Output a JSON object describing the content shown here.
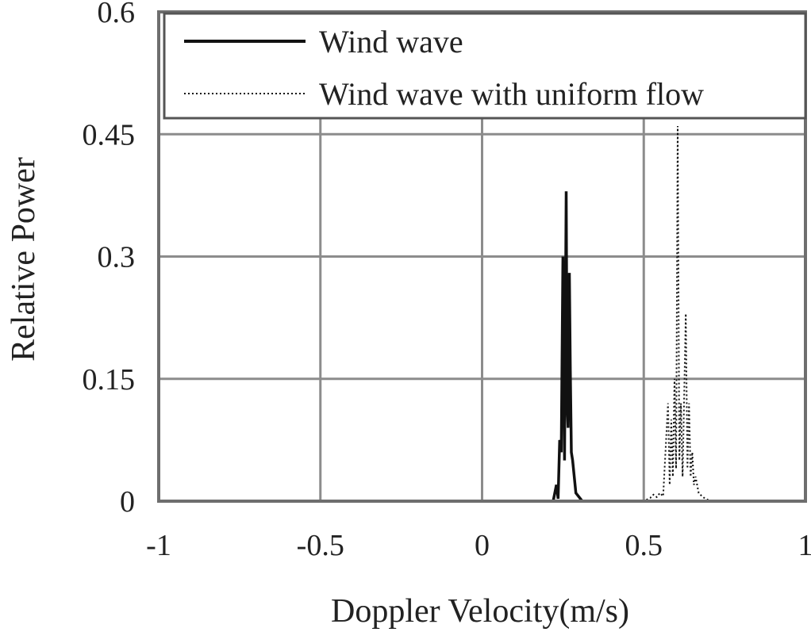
{
  "chart_data": {
    "type": "line",
    "title": "",
    "xlabel": "Doppler Velocity(m/s)",
    "ylabel": "Relative Power",
    "xlim": [
      -1,
      1
    ],
    "ylim": [
      0,
      0.6
    ],
    "x_ticks": [
      -1,
      -0.5,
      0,
      0.5,
      1
    ],
    "x_tick_labels": [
      "-1",
      "-0.5",
      "0",
      "0.5",
      "1"
    ],
    "y_ticks": [
      0,
      0.15,
      0.3,
      0.45,
      0.6
    ],
    "y_tick_labels": [
      "0",
      "0.15",
      "0.3",
      "0.45",
      "0.6"
    ],
    "grid": true,
    "legend_position": "top-right",
    "colors": {
      "series": "#111111",
      "grid": "#8c8c8c",
      "frame": "#6e6e6e"
    },
    "series": [
      {
        "name": "Wind wave",
        "style": "solid",
        "points": [
          [
            -1.0,
            0
          ],
          [
            0.22,
            0
          ],
          [
            0.23,
            0.02
          ],
          [
            0.235,
            0.003
          ],
          [
            0.24,
            0.075
          ],
          [
            0.245,
            0.06
          ],
          [
            0.25,
            0.3
          ],
          [
            0.255,
            0.05
          ],
          [
            0.26,
            0.38
          ],
          [
            0.263,
            0.12
          ],
          [
            0.266,
            0.09
          ],
          [
            0.27,
            0.28
          ],
          [
            0.273,
            0.16
          ],
          [
            0.276,
            0.06
          ],
          [
            0.28,
            0.05
          ],
          [
            0.29,
            0.01
          ],
          [
            0.31,
            0
          ],
          [
            1.0,
            0
          ]
        ]
      },
      {
        "name": "Wind wave with uniform flow",
        "style": "dotted",
        "points": [
          [
            -1.0,
            0
          ],
          [
            0.5,
            0
          ],
          [
            0.52,
            0.004
          ],
          [
            0.53,
            0.008
          ],
          [
            0.54,
            0.005
          ],
          [
            0.55,
            0.01
          ],
          [
            0.56,
            0.006
          ],
          [
            0.575,
            0.12
          ],
          [
            0.58,
            0.02
          ],
          [
            0.585,
            0.1
          ],
          [
            0.59,
            0.03
          ],
          [
            0.595,
            0.15
          ],
          [
            0.6,
            0.04
          ],
          [
            0.605,
            0.46
          ],
          [
            0.61,
            0.05
          ],
          [
            0.615,
            0.12
          ],
          [
            0.62,
            0.03
          ],
          [
            0.63,
            0.23
          ],
          [
            0.635,
            0.04
          ],
          [
            0.64,
            0.12
          ],
          [
            0.645,
            0.03
          ],
          [
            0.65,
            0.06
          ],
          [
            0.655,
            0.02
          ],
          [
            0.66,
            0.03
          ],
          [
            0.67,
            0.01
          ],
          [
            0.68,
            0.006
          ],
          [
            0.69,
            0.003
          ],
          [
            0.71,
            0
          ],
          [
            1.0,
            0
          ]
        ]
      }
    ]
  }
}
